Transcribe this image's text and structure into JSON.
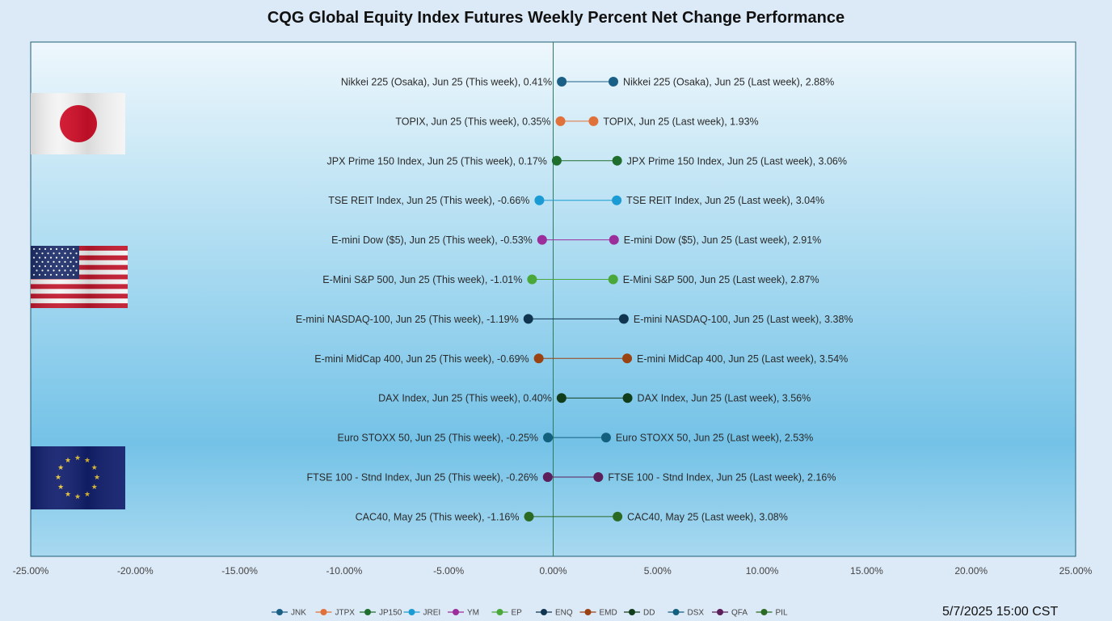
{
  "chart_data": {
    "type": "dumbbell",
    "title": "CQG Global Equity Index Futures Weekly Percent Net Change Performance",
    "x_ticks": [
      "-25.00%",
      "-20.00%",
      "-15.00%",
      "-10.00%",
      "-5.00%",
      "0.00%",
      "5.00%",
      "10.00%",
      "15.00%",
      "20.00%",
      "25.00%"
    ],
    "xlim": [
      -25,
      25
    ],
    "grid": false,
    "legend_position": "bottom",
    "rows": [
      {
        "code": "JNK",
        "this_label": "Nikkei 225 (Osaka), Jun 25 (This week), 0.41%",
        "last_label": "Nikkei 225 (Osaka), Jun 25 (Last week), 2.88%",
        "this_value": 0.41,
        "last_value": 2.88,
        "color": "#1a5f86"
      },
      {
        "code": "JTPX",
        "this_label": "TOPIX, Jun 25 (This week), 0.35%",
        "last_label": "TOPIX, Jun 25 (Last week), 1.93%",
        "this_value": 0.35,
        "last_value": 1.93,
        "color": "#e0713a"
      },
      {
        "code": "JP150",
        "this_label": "JPX Prime 150 Index, Jun 25 (This week), 0.17%",
        "last_label": "JPX Prime 150 Index, Jun 25 (Last week), 3.06%",
        "this_value": 0.17,
        "last_value": 3.06,
        "color": "#1f6e2e"
      },
      {
        "code": "JREI",
        "this_label": "TSE REIT Index, Jun 25 (This week), -0.66%",
        "last_label": "TSE REIT Index, Jun 25 (Last week), 3.04%",
        "this_value": -0.66,
        "last_value": 3.04,
        "color": "#1a9bd4"
      },
      {
        "code": "YM",
        "this_label": "E-mini Dow ($5), Jun 25 (This week), -0.53%",
        "last_label": "E-mini Dow ($5), Jun 25 (Last week), 2.91%",
        "this_value": -0.53,
        "last_value": 2.91,
        "color": "#9b2e9b"
      },
      {
        "code": "EP",
        "this_label": "E-Mini S&P 500, Jun 25 (This week), -1.01%",
        "last_label": "E-Mini S&P 500, Jun 25 (Last week), 2.87%",
        "this_value": -1.01,
        "last_value": 2.87,
        "color": "#4aa83a"
      },
      {
        "code": "ENQ",
        "this_label": "E-mini NASDAQ-100, Jun 25 (This week), -1.19%",
        "last_label": "E-mini NASDAQ-100, Jun 25 (Last week), 3.38%",
        "this_value": -1.19,
        "last_value": 3.38,
        "color": "#0f3550"
      },
      {
        "code": "EMD",
        "this_label": "E-mini MidCap 400, Jun 25 (This week), -0.69%",
        "last_label": "E-mini MidCap 400, Jun 25 (Last week), 3.54%",
        "this_value": -0.69,
        "last_value": 3.54,
        "color": "#9a4212"
      },
      {
        "code": "DD",
        "this_label": "DAX Index, Jun 25 (This week), 0.40%",
        "last_label": "DAX Index, Jun 25 (Last week), 3.56%",
        "this_value": 0.4,
        "last_value": 3.56,
        "color": "#123d1a"
      },
      {
        "code": "DSX",
        "this_label": "Euro STOXX 50, Jun 25 (This week), -0.25%",
        "last_label": "Euro STOXX 50, Jun 25 (Last week), 2.53%",
        "this_value": -0.25,
        "last_value": 2.53,
        "color": "#125f7e"
      },
      {
        "code": "QFA",
        "this_label": "FTSE 100 - Stnd Index, Jun 25 (This week), -0.26%",
        "last_label": "FTSE 100 - Stnd Index, Jun 25 (Last week), 2.16%",
        "this_value": -0.26,
        "last_value": 2.16,
        "color": "#5c1f5a"
      },
      {
        "code": "PIL",
        "this_label": "CAC40, May 25 (This week), -1.16%",
        "last_label": "CAC40, May 25 (Last week), 3.08%",
        "this_value": -1.16,
        "last_value": 3.08,
        "color": "#2a6a22"
      }
    ],
    "flags": [
      "japan-flag",
      "usa-flag",
      "eu-flag"
    ]
  },
  "timestamp": "5/7/2025 15:00 CST",
  "colors": {
    "plot_border": "#1d5f74",
    "plot_gradient_top": "#eef6fb",
    "plot_gradient_mid": "#79c5e9",
    "zero_line": "#2e7a5e"
  }
}
